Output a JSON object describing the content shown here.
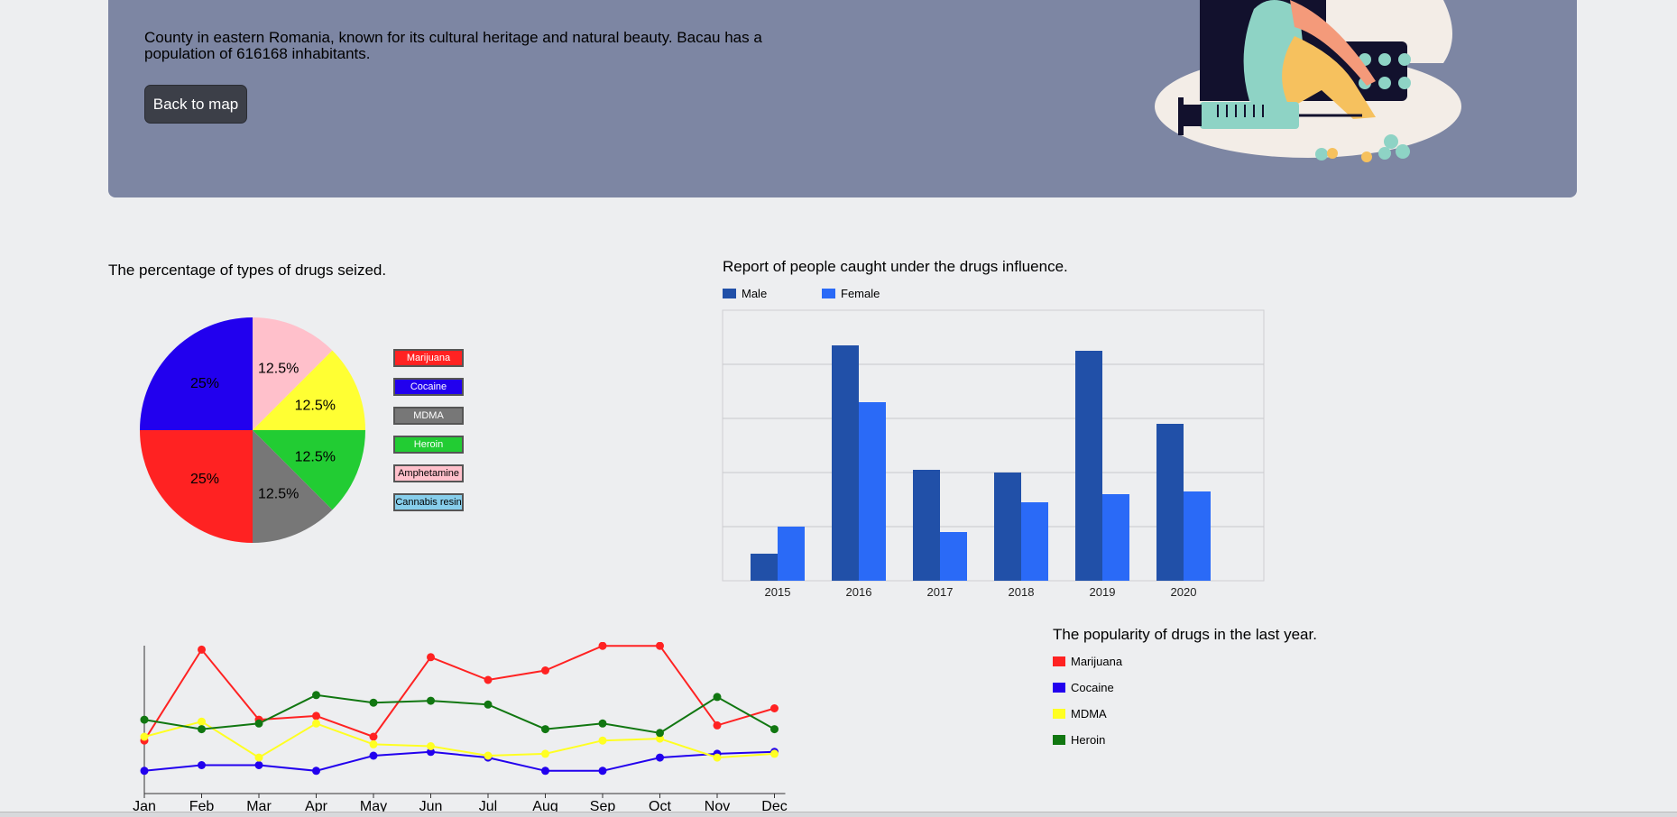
{
  "hero": {
    "description": "County in eastern Romania, known for its cultural heritage and natural beauty. Bacau has a population of 616168 inhabitants.",
    "back_button_label": "Back to map"
  },
  "pie": {
    "title": "The percentage of types of drugs seized.",
    "legend": [
      {
        "label": "Marijuana",
        "color": "#ff2222",
        "text_color": "#ffffff"
      },
      {
        "label": "Cocaine",
        "color": "#2200ee",
        "text_color": "#ffffff"
      },
      {
        "label": "MDMA",
        "color": "#777777",
        "text_color": "#ffffff"
      },
      {
        "label": "Heroin",
        "color": "#22cc33",
        "text_color": "#ffffff"
      },
      {
        "label": "Amphetamine",
        "color": "#ffc0cb",
        "text_color": "#000000"
      },
      {
        "label": "Cannabis resin",
        "color": "#87ceeb",
        "text_color": "#000000"
      }
    ]
  },
  "bars": {
    "title": "Report of people caught under the drugs influence.",
    "legend": [
      {
        "label": "Male",
        "color": "#2150a8"
      },
      {
        "label": "Female",
        "color": "#2a6af7"
      }
    ]
  },
  "lines": {
    "title": "The popularity of drugs in the last year.",
    "legend": [
      {
        "label": "Marijuana",
        "color": "#ff2222"
      },
      {
        "label": "Cocaine",
        "color": "#2200ee"
      },
      {
        "label": "MDMA",
        "color": "#ffff22"
      },
      {
        "label": "Heroin",
        "color": "#117711"
      }
    ]
  },
  "chart_data": [
    {
      "type": "pie",
      "title": "The percentage of types of drugs seized.",
      "slices": [
        {
          "label": "Amphetamine",
          "value": 12.5,
          "display": "12.5%",
          "color": "#ffc0cb"
        },
        {
          "label": "MDMA_yellow",
          "value": 12.5,
          "display": "12.5%",
          "color": "#ffff33"
        },
        {
          "label": "Heroin",
          "value": 12.5,
          "display": "12.5%",
          "color": "#22cc33"
        },
        {
          "label": "MDMA",
          "value": 12.5,
          "display": "12.5%",
          "color": "#777777"
        },
        {
          "label": "Marijuana",
          "value": 25,
          "display": "25%",
          "color": "#ff2222"
        },
        {
          "label": "Cocaine",
          "value": 25,
          "display": "25%",
          "color": "#2200ee"
        }
      ],
      "legend_position": "right"
    },
    {
      "type": "bar",
      "title": "Report of people caught under the drugs influence.",
      "categories": [
        "2015",
        "2016",
        "2017",
        "2018",
        "2019",
        "2020"
      ],
      "series": [
        {
          "name": "Male",
          "values": [
            5,
            43.5,
            20.5,
            20,
            42.5,
            29
          ],
          "color": "#2150a8"
        },
        {
          "name": "Female",
          "values": [
            10,
            33,
            9,
            14.5,
            16,
            16.5
          ],
          "color": "#2a6af7"
        }
      ],
      "ylim": [
        0,
        50
      ],
      "grid": true,
      "legend_position": "top-left"
    },
    {
      "type": "line",
      "title": "The popularity of drugs in the last year.",
      "categories": [
        "Jan",
        "Feb",
        "Mar",
        "Apr",
        "May",
        "Jun",
        "Jul",
        "Aug",
        "Sep",
        "Oct",
        "Nov",
        "Dec"
      ],
      "series": [
        {
          "name": "Marijuana",
          "color": "#ff2222",
          "values": [
            28,
            76,
            39,
            41,
            30,
            72,
            60,
            65,
            78,
            78,
            36,
            45
          ]
        },
        {
          "name": "Cocaine",
          "color": "#2200ee",
          "values": [
            12,
            15,
            15,
            12,
            20,
            22,
            19,
            12,
            12,
            19,
            21,
            22
          ]
        },
        {
          "name": "MDMA",
          "color": "#ffff22",
          "values": [
            30,
            38,
            19,
            37,
            26,
            25,
            20,
            21,
            28,
            29,
            19,
            21
          ]
        },
        {
          "name": "Heroin",
          "color": "#117711",
          "values": [
            39,
            34,
            37,
            52,
            48,
            49,
            47,
            34,
            37,
            32,
            51,
            34
          ]
        }
      ],
      "ylim": [
        0,
        80
      ],
      "grid": false,
      "legend_position": "right"
    }
  ]
}
